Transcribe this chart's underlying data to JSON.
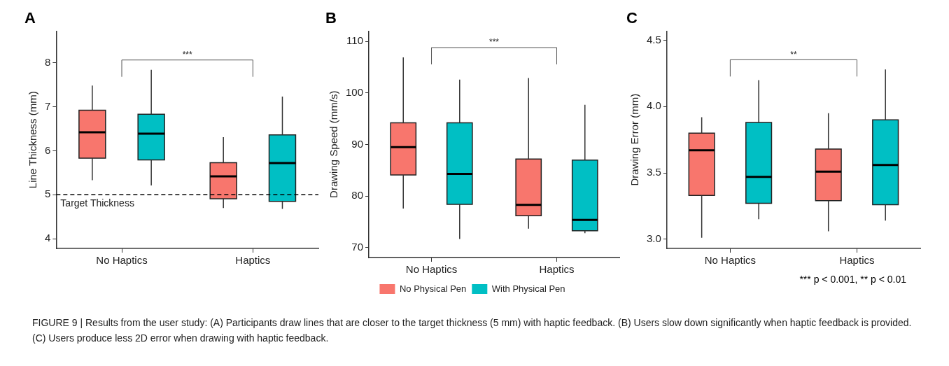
{
  "chart_data": [
    {
      "type": "box",
      "title": "A",
      "ylabel": "Line Thickness (mm)",
      "categories": [
        "No Haptics",
        "Haptics"
      ],
      "series": [
        {
          "color": "#f8766d",
          "boxes": [
            {
              "low": 5.33,
              "q1": 5.83,
              "median": 6.42,
              "q3": 6.92,
              "high": 7.48
            },
            {
              "low": 4.7,
              "q1": 4.91,
              "median": 5.42,
              "q3": 5.73,
              "high": 6.31
            }
          ]
        },
        {
          "color": "#00bfc4",
          "boxes": [
            {
              "low": 5.21,
              "q1": 5.79,
              "median": 6.39,
              "q3": 6.83,
              "high": 7.84
            },
            {
              "low": 4.68,
              "q1": 4.85,
              "median": 5.72,
              "q3": 6.36,
              "high": 7.23
            }
          ]
        }
      ],
      "ylim": [
        3.78,
        8.72
      ],
      "yticks": [
        4,
        5,
        6,
        7,
        8
      ],
      "ref_lines": [
        {
          "axis": "y",
          "value": 5,
          "label": "Target Thickness",
          "line_style": "dashed",
          "color": "#000000"
        }
      ],
      "annotations": [
        "***",
        "FIGURE 9 | Results from the user study: (A) Participants draw lines that are closer to the target thickness (5 mm) with haptic feedback. (B) Users slow down significantly when haptic feedback is provided. (C) Users produce less 2D error when drawing with haptic feedback."
      ]
    },
    {
      "type": "box",
      "title": "B",
      "ylabel": "Drawing Speed (mm/s)",
      "categories": [
        "No Haptics",
        "Haptics"
      ],
      "series": [
        {
          "name": "No Physical Pen",
          "color": "#f8766d",
          "boxes": [
            {
              "low": 77.6,
              "q1": 84.1,
              "median": 89.5,
              "q3": 94.2,
              "high": 106.9
            },
            {
              "low": 73.7,
              "q1": 76.2,
              "median": 78.3,
              "q3": 87.2,
              "high": 102.9
            }
          ]
        },
        {
          "name": "With Physical Pen",
          "color": "#00bfc4",
          "boxes": [
            {
              "low": 71.7,
              "q1": 78.4,
              "median": 84.3,
              "q3": 94.2,
              "high": 102.6
            },
            {
              "low": 72.8,
              "q1": 73.3,
              "median": 75.4,
              "q3": 87.0,
              "high": 97.7
            }
          ]
        }
      ],
      "ylim": [
        68.1,
        112
      ],
      "yticks": [
        70,
        80,
        90,
        100,
        110
      ],
      "legend": "bottom",
      "annotations": [
        "***"
      ]
    },
    {
      "type": "box",
      "title": "C",
      "ylabel": "Drawing Error (mm)",
      "categories": [
        "No Haptics",
        "Haptics"
      ],
      "series": [
        {
          "color": "#f8766d",
          "boxes": [
            {
              "low": 3.01,
              "q1": 3.33,
              "median": 3.67,
              "q3": 3.8,
              "high": 3.92
            },
            {
              "low": 3.06,
              "q1": 3.29,
              "median": 3.51,
              "q3": 3.68,
              "high": 3.95
            }
          ]
        },
        {
          "color": "#00bfc4",
          "boxes": [
            {
              "low": 3.15,
              "q1": 3.27,
              "median": 3.47,
              "q3": 3.88,
              "high": 4.2
            },
            {
              "low": 3.14,
              "q1": 3.26,
              "median": 3.56,
              "q3": 3.9,
              "high": 4.28
            }
          ]
        }
      ],
      "ylim": [
        2.93,
        4.57
      ],
      "yticks": [
        {
          "value": 3,
          "label": "3.0"
        },
        {
          "value": 3.5,
          "label": "3.5"
        },
        {
          "value": 4,
          "label": "4.0"
        },
        {
          "value": 4.5,
          "label": "4.5"
        }
      ],
      "annotations": [
        "**",
        "*** p < 0.001, ** p < 0.01"
      ]
    }
  ]
}
